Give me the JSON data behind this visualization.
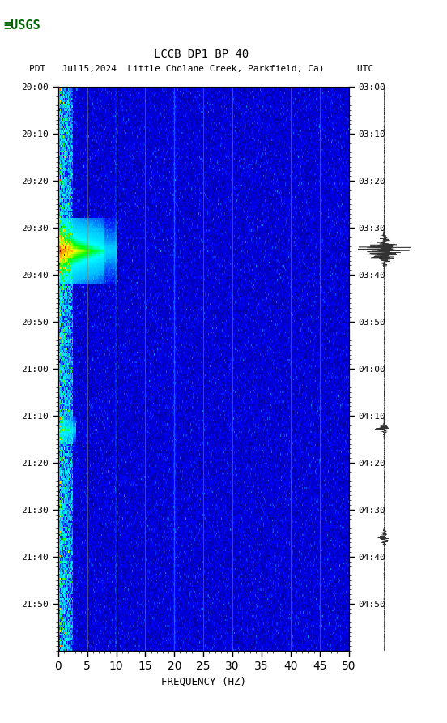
{
  "title_line1": "LCCB DP1 BP 40",
  "title_line2": "PDT   Jul15,2024  Little Cholane Creek, Parkfield, Ca)      UTC",
  "left_yticks_labels": [
    "20:00",
    "20:10",
    "20:20",
    "20:30",
    "20:40",
    "20:50",
    "21:00",
    "21:10",
    "21:20",
    "21:30",
    "21:40",
    "21:50"
  ],
  "right_yticks_labels": [
    "03:00",
    "03:10",
    "03:20",
    "03:30",
    "03:40",
    "03:50",
    "04:00",
    "04:10",
    "04:20",
    "04:30",
    "04:40",
    "04:50"
  ],
  "xlabel": "FREQUENCY (HZ)",
  "xmin": 0,
  "xmax": 50,
  "xticks": [
    0,
    5,
    10,
    15,
    20,
    25,
    30,
    35,
    40,
    45,
    50
  ],
  "grid_x_positions": [
    5,
    10,
    15,
    20,
    25,
    30,
    35,
    40,
    45
  ],
  "fig_width": 5.52,
  "fig_height": 8.92,
  "bg_color": "#000080",
  "spectrogram_bg": "#000080",
  "usgs_logo_color": "#006400"
}
